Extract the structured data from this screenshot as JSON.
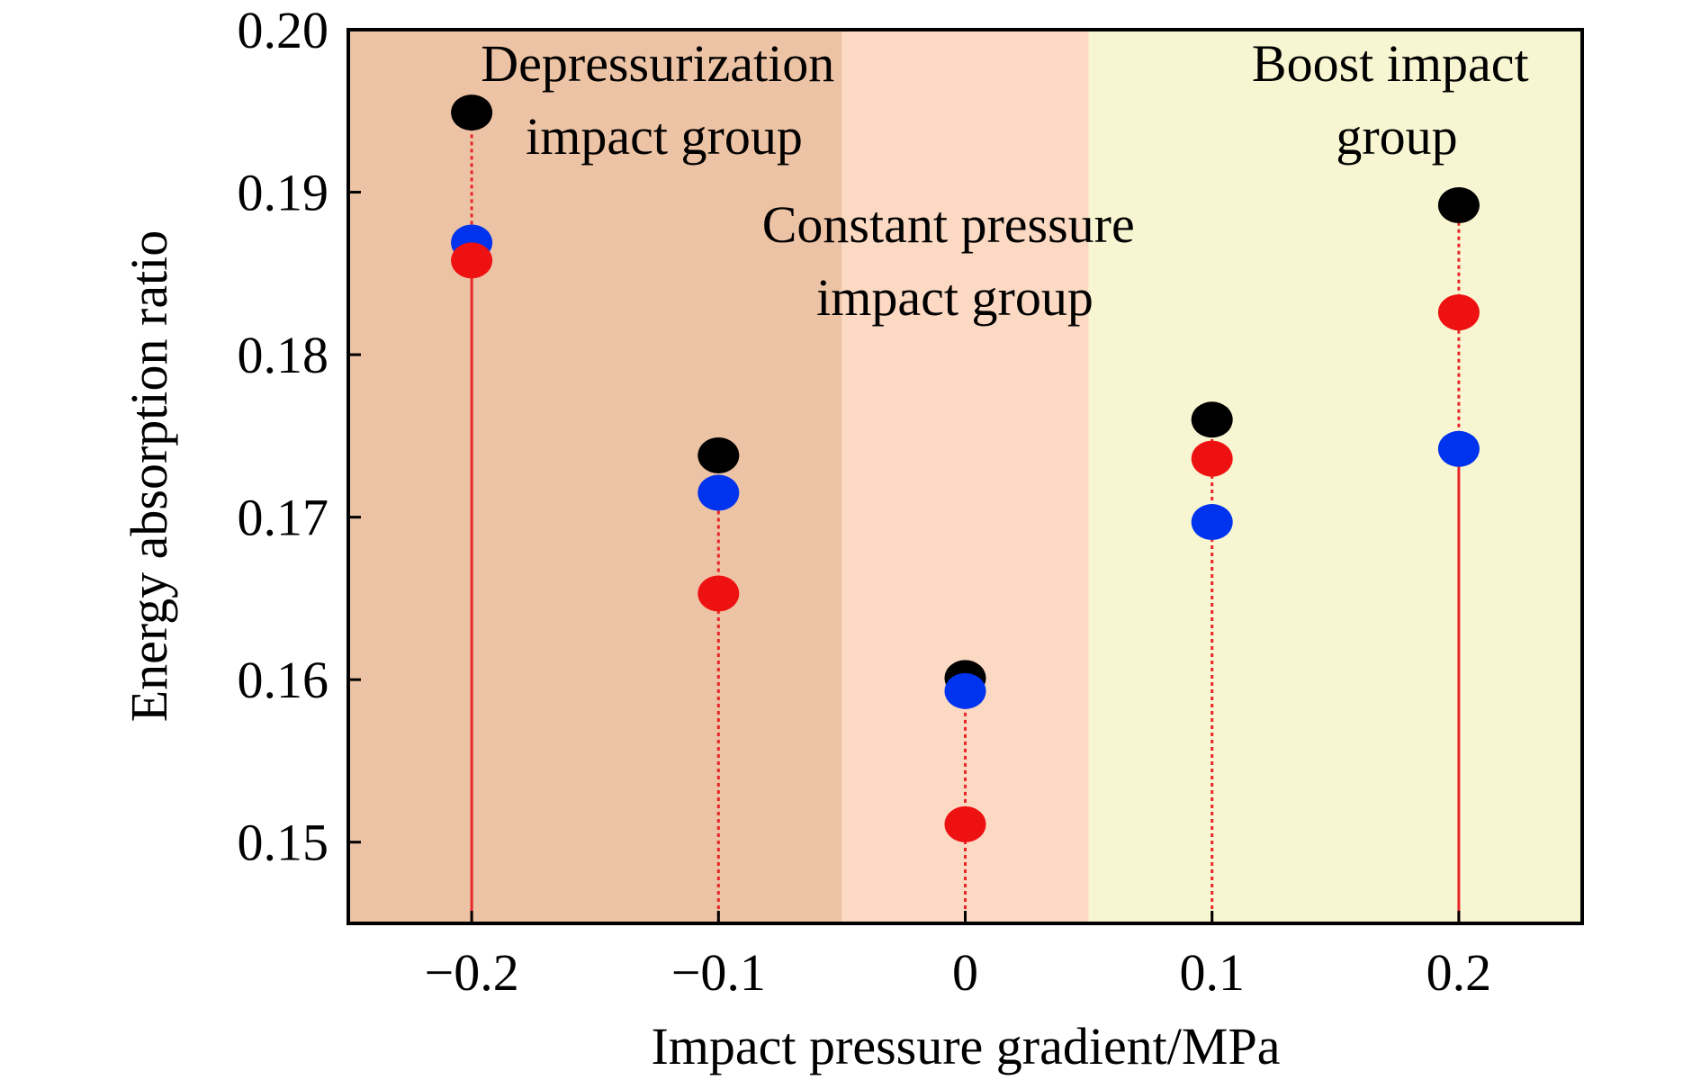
{
  "chart_data": {
    "type": "scatter",
    "xlabel": "Impact pressure gradient/MPa",
    "ylabel": "Energy absorption ratio",
    "xlim": [
      -0.25,
      0.25
    ],
    "ylim": [
      0.145,
      0.2
    ],
    "x": [
      -0.2,
      -0.1,
      0,
      0.1,
      0.2
    ],
    "x_tick_labels": [
      "−0.2",
      "−0.1",
      "0",
      "0.1",
      "0.2"
    ],
    "y_ticks": [
      0.15,
      0.16,
      0.17,
      0.18,
      0.19,
      0.2
    ],
    "y_tick_labels": [
      "0.15",
      "0.16",
      "0.17",
      "0.18",
      "0.19",
      "0.20"
    ],
    "series": [
      {
        "color": "#000000",
        "values": [
          0.1949,
          0.1738,
          0.1601,
          0.176,
          0.1892
        ]
      },
      {
        "color": "#0033ee",
        "values": [
          0.1869,
          0.1715,
          0.1593,
          0.1697,
          0.1742
        ]
      },
      {
        "color": "#ee1111",
        "values": [
          0.1858,
          0.1653,
          0.1511,
          0.1736,
          0.1826
        ]
      }
    ],
    "background_regions": [
      {
        "from": -0.25,
        "to": -0.05,
        "color": "#edc3a5"
      },
      {
        "from": -0.05,
        "to": 0.05,
        "color": "#fbd9c3"
      },
      {
        "from": 0.05,
        "to": 0.25,
        "color": "#f8f6d2"
      }
    ],
    "stem_color": "#e8262a",
    "annotations": [
      {
        "lines": [
          "Depressurization",
          "impact group"
        ]
      },
      {
        "lines": [
          "Constant pressure",
          "impact group"
        ]
      },
      {
        "lines": [
          "Boost impact",
          "group"
        ]
      }
    ]
  }
}
